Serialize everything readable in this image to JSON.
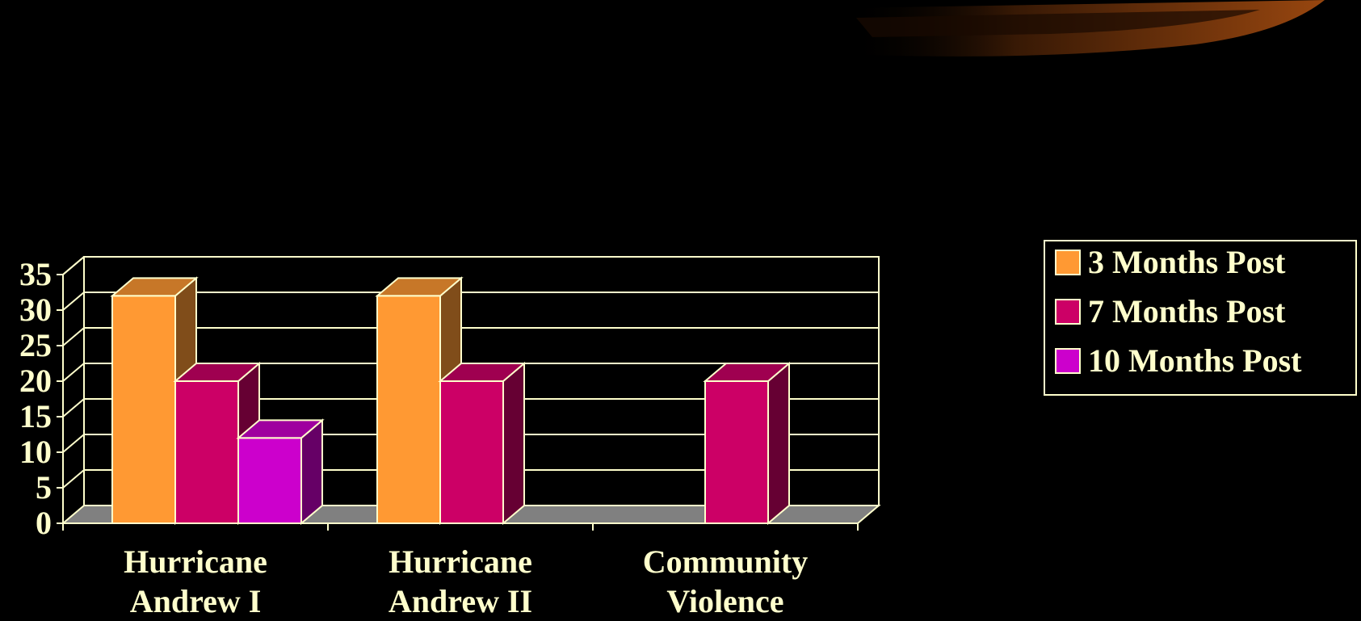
{
  "chart_data": {
    "type": "bar",
    "categories": [
      [
        "Hurricane",
        "Andrew I"
      ],
      [
        "Hurricane",
        "Andrew II"
      ],
      [
        "Community",
        "Violence"
      ]
    ],
    "series": [
      {
        "name": "3 Months Post",
        "color": "#FF9933",
        "values": [
          32,
          32,
          0
        ]
      },
      {
        "name": "7 Months Post",
        "color": "#CC0066",
        "values": [
          20,
          20,
          20
        ]
      },
      {
        "name": "10 Months Post",
        "color": "#CC00CC",
        "values": [
          12,
          0,
          0
        ]
      }
    ],
    "y_ticks": [
      "0",
      "5",
      "10",
      "15",
      "20",
      "25",
      "30",
      "35"
    ],
    "ylim": [
      0,
      35
    ],
    "grid": true,
    "legend_position": "right",
    "title": "",
    "xlabel": "",
    "ylabel": ""
  },
  "colors": {
    "background": "#000000",
    "axis_line": "#FFFFCC",
    "floor": "#808080",
    "text": "#FFFFCC"
  }
}
